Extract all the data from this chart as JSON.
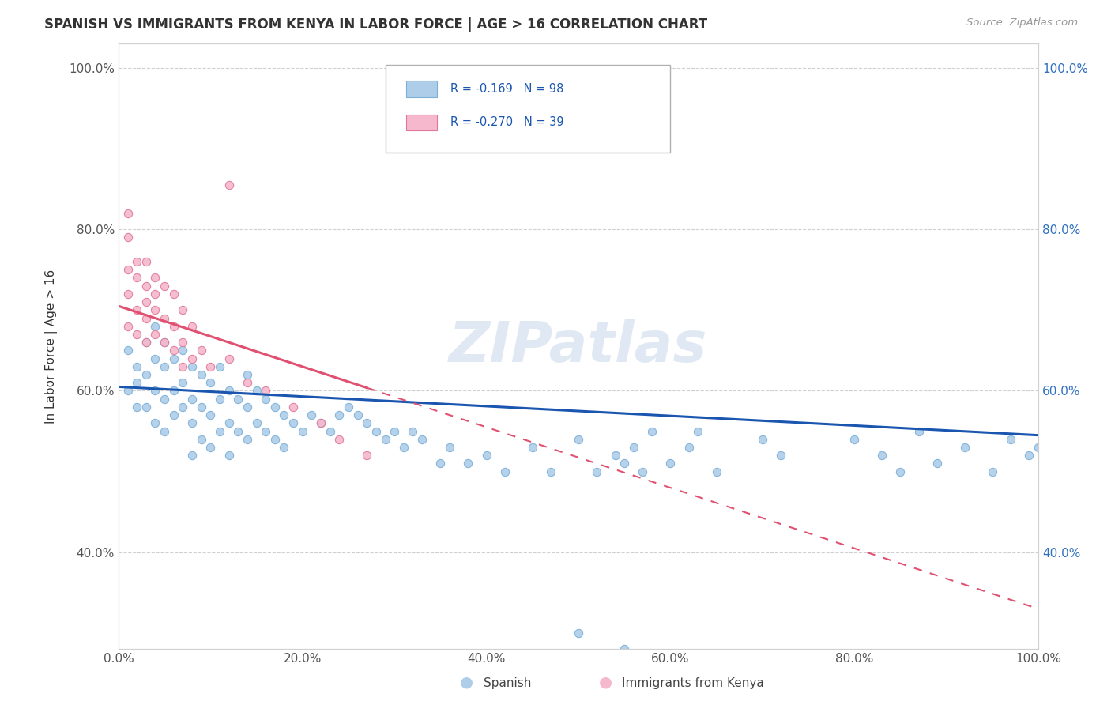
{
  "title": "SPANISH VS IMMIGRANTS FROM KENYA IN LABOR FORCE | AGE > 16 CORRELATION CHART",
  "source_text": "Source: ZipAtlas.com",
  "ylabel": "In Labor Force | Age > 16",
  "xlim": [
    0.0,
    1.0
  ],
  "ylim": [
    0.28,
    1.03
  ],
  "xtick_vals": [
    0.0,
    0.2,
    0.4,
    0.6,
    0.8,
    1.0
  ],
  "xtick_labels": [
    "0.0%",
    "20.0%",
    "40.0%",
    "60.0%",
    "80.0%",
    "100.0%"
  ],
  "ytick_vals": [
    0.4,
    0.6,
    0.8,
    1.0
  ],
  "ytick_labels": [
    "40.0%",
    "60.0%",
    "80.0%",
    "100.0%"
  ],
  "watermark_text": "ZIPatlas",
  "background_color": "#ffffff",
  "grid_color": "#d0d0d0",
  "spanish_fill": "#aecde8",
  "spanish_edge": "#7bb0d8",
  "kenya_fill": "#f5b8cc",
  "kenya_edge": "#e07898",
  "trend_spanish_color": "#1a56b0",
  "trend_kenya_color": "#e05070",
  "legend_r1": "R = -0.169   N = 98",
  "legend_r2": "R = -0.270   N = 39",
  "legend_color": "#1a56b0",
  "marker_size": 55,
  "trend_lw": 2.2,
  "sp_trend_start_y": 0.605,
  "sp_trend_end_y": 0.545,
  "ke_trend_start_y": 0.705,
  "ke_trend_end_y": 0.33,
  "spanish_x": [
    0.01,
    0.01,
    0.02,
    0.02,
    0.02,
    0.03,
    0.03,
    0.03,
    0.04,
    0.04,
    0.04,
    0.04,
    0.05,
    0.05,
    0.05,
    0.05,
    0.06,
    0.06,
    0.06,
    0.07,
    0.07,
    0.07,
    0.08,
    0.08,
    0.08,
    0.08,
    0.09,
    0.09,
    0.09,
    0.1,
    0.1,
    0.1,
    0.11,
    0.11,
    0.11,
    0.12,
    0.12,
    0.12,
    0.13,
    0.13,
    0.14,
    0.14,
    0.14,
    0.15,
    0.15,
    0.16,
    0.16,
    0.17,
    0.17,
    0.18,
    0.18,
    0.19,
    0.2,
    0.21,
    0.22,
    0.23,
    0.24,
    0.25,
    0.26,
    0.27,
    0.28,
    0.29,
    0.3,
    0.31,
    0.32,
    0.33,
    0.35,
    0.36,
    0.38,
    0.4,
    0.42,
    0.45,
    0.47,
    0.5,
    0.52,
    0.54,
    0.55,
    0.56,
    0.57,
    0.58,
    0.6,
    0.62,
    0.63,
    0.65,
    0.7,
    0.72,
    0.8,
    0.83,
    0.85,
    0.87,
    0.89,
    0.92,
    0.95,
    0.97,
    0.99,
    1.0,
    0.5,
    0.55
  ],
  "spanish_y": [
    0.65,
    0.6,
    0.63,
    0.58,
    0.61,
    0.66,
    0.62,
    0.58,
    0.64,
    0.6,
    0.56,
    0.68,
    0.63,
    0.59,
    0.55,
    0.66,
    0.64,
    0.6,
    0.57,
    0.65,
    0.61,
    0.58,
    0.63,
    0.59,
    0.56,
    0.52,
    0.62,
    0.58,
    0.54,
    0.61,
    0.57,
    0.53,
    0.63,
    0.59,
    0.55,
    0.6,
    0.56,
    0.52,
    0.59,
    0.55,
    0.62,
    0.58,
    0.54,
    0.6,
    0.56,
    0.59,
    0.55,
    0.58,
    0.54,
    0.57,
    0.53,
    0.56,
    0.55,
    0.57,
    0.56,
    0.55,
    0.57,
    0.58,
    0.57,
    0.56,
    0.55,
    0.54,
    0.55,
    0.53,
    0.55,
    0.54,
    0.51,
    0.53,
    0.51,
    0.52,
    0.5,
    0.53,
    0.5,
    0.54,
    0.5,
    0.52,
    0.51,
    0.53,
    0.5,
    0.55,
    0.51,
    0.53,
    0.55,
    0.5,
    0.54,
    0.52,
    0.54,
    0.52,
    0.5,
    0.55,
    0.51,
    0.53,
    0.5,
    0.54,
    0.52,
    0.53,
    0.3,
    0.28
  ],
  "kenya_x": [
    0.01,
    0.01,
    0.01,
    0.01,
    0.01,
    0.02,
    0.02,
    0.02,
    0.02,
    0.03,
    0.03,
    0.03,
    0.03,
    0.03,
    0.04,
    0.04,
    0.04,
    0.04,
    0.05,
    0.05,
    0.05,
    0.06,
    0.06,
    0.06,
    0.07,
    0.07,
    0.07,
    0.08,
    0.08,
    0.09,
    0.1,
    0.12,
    0.14,
    0.16,
    0.19,
    0.22,
    0.24,
    0.27,
    0.12
  ],
  "kenya_y": [
    0.75,
    0.72,
    0.68,
    0.79,
    0.82,
    0.74,
    0.7,
    0.67,
    0.76,
    0.73,
    0.69,
    0.66,
    0.76,
    0.71,
    0.74,
    0.7,
    0.67,
    0.72,
    0.73,
    0.69,
    0.66,
    0.72,
    0.68,
    0.65,
    0.7,
    0.66,
    0.63,
    0.68,
    0.64,
    0.65,
    0.63,
    0.64,
    0.61,
    0.6,
    0.58,
    0.56,
    0.54,
    0.52,
    0.855
  ]
}
